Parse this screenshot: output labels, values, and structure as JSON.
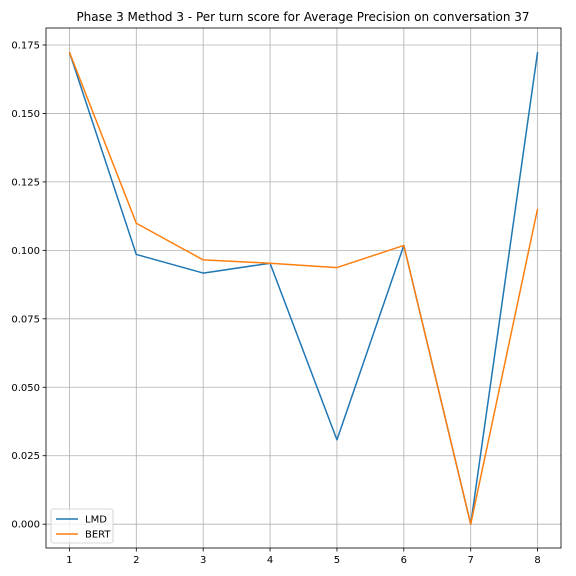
{
  "chart_data": {
    "type": "line",
    "title": "Phase 3 Method 3 - Per turn score for Average Precision on conversation 37",
    "xlabel": "",
    "ylabel": "",
    "x": [
      1,
      2,
      3,
      4,
      5,
      6,
      7,
      8
    ],
    "x_ticks": [
      "1",
      "2",
      "3",
      "4",
      "5",
      "6",
      "7",
      "8"
    ],
    "xlim": [
      0.65,
      8.35
    ],
    "y_ticks": [
      "0.000",
      "0.025",
      "0.050",
      "0.075",
      "0.100",
      "0.125",
      "0.150",
      "0.175"
    ],
    "y_tick_values": [
      0.0,
      0.025,
      0.05,
      0.075,
      0.1,
      0.125,
      0.15,
      0.175
    ],
    "ylim": [
      -0.0087,
      0.1812
    ],
    "grid": true,
    "legend_position": "lower-left",
    "series": [
      {
        "name": "LMD",
        "color": "#1f77b4",
        "values": [
          0.1724,
          0.0985,
          0.0917,
          0.0953,
          0.0308,
          0.1018,
          0.0,
          0.1724
        ]
      },
      {
        "name": "BERT",
        "color": "#ff7f0e",
        "values": [
          0.1724,
          0.1099,
          0.0965,
          0.0953,
          0.0937,
          0.1018,
          0.0,
          0.1152
        ]
      }
    ]
  }
}
